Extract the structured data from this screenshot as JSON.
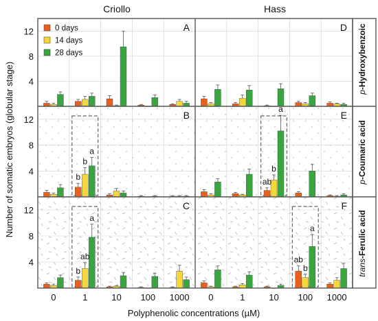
{
  "colors": {
    "day0": "#e8601c",
    "day14": "#f5d63b",
    "day28": "#3aa540",
    "frame": "#555555",
    "grid": "#d0d0d0"
  },
  "chart_data": [
    {
      "type": "bar",
      "panel": "A",
      "cultivar": "Criollo",
      "compound_pre": "p",
      "compound_main": "-Hydroxybenzoic",
      "categories": [
        "0",
        "1",
        "10",
        "100",
        "1000"
      ],
      "ylim": [
        0,
        14
      ],
      "yticks": [
        4,
        8,
        12
      ],
      "series": [
        {
          "name": "0 days",
          "values": [
            0.5,
            0.8,
            1.2,
            0.2,
            0.3
          ],
          "errors": [
            0.3,
            0.3,
            0.5,
            0.1,
            0.1
          ]
        },
        {
          "name": "14 days",
          "values": [
            0.3,
            1.1,
            0.1,
            0.0,
            0.8
          ],
          "errors": [
            0.2,
            0.5,
            0.1,
            0.0,
            0.3
          ]
        },
        {
          "name": "28 days",
          "values": [
            1.9,
            1.6,
            9.5,
            1.4,
            0.5
          ],
          "errors": [
            0.4,
            0.5,
            2.5,
            0.4,
            0.3
          ]
        }
      ],
      "letters": [],
      "box": null
    },
    {
      "type": "bar",
      "panel": "B",
      "cultivar": "",
      "compound_pre": "p",
      "compound_main": "-Coumaric acid",
      "categories": [
        "0",
        "1",
        "10",
        "100",
        "1000"
      ],
      "ylim": [
        0,
        14
      ],
      "yticks": [
        4,
        8,
        12
      ],
      "series": [
        {
          "name": "0 days",
          "values": [
            0.7,
            1.5,
            0.3,
            0.1,
            0.1
          ],
          "errors": [
            0.3,
            0.6,
            0.2,
            0.1,
            0.1
          ]
        },
        {
          "name": "14 days",
          "values": [
            0.4,
            3.5,
            0.9,
            0.0,
            0.1
          ],
          "errors": [
            0.2,
            1.0,
            0.4,
            0.0,
            0.1
          ]
        },
        {
          "name": "28 days",
          "values": [
            1.4,
            4.8,
            0.6,
            0.1,
            0.1
          ],
          "errors": [
            0.5,
            1.3,
            0.3,
            0.1,
            0.1
          ]
        }
      ],
      "letters": [
        {
          "cat": 1,
          "s": 0,
          "text": "b"
        },
        {
          "cat": 1,
          "s": 1,
          "text": "b"
        },
        {
          "cat": 1,
          "s": 2,
          "text": "a"
        }
      ],
      "box": [
        1
      ]
    },
    {
      "type": "bar",
      "panel": "C",
      "cultivar": "",
      "compound_pre": "trans",
      "compound_main": "-Ferulic acid",
      "categories": [
        "0",
        "1",
        "10",
        "100",
        "1000"
      ],
      "ylim": [
        0,
        14
      ],
      "yticks": [
        4,
        8,
        12
      ],
      "series": [
        {
          "name": "0 days",
          "values": [
            0.6,
            1.2,
            0.2,
            0.1,
            0.1
          ],
          "errors": [
            0.2,
            0.5,
            0.1,
            0.1,
            0.1
          ]
        },
        {
          "name": "14 days",
          "values": [
            0.4,
            3.0,
            0.3,
            0.0,
            2.6
          ],
          "errors": [
            0.2,
            0.9,
            0.1,
            0.0,
            0.9
          ]
        },
        {
          "name": "28 days",
          "values": [
            1.6,
            7.8,
            1.9,
            1.8,
            1.3
          ],
          "errors": [
            0.4,
            2.0,
            0.5,
            0.5,
            0.4
          ]
        }
      ],
      "letters": [
        {
          "cat": 1,
          "s": 0,
          "text": "b"
        },
        {
          "cat": 1,
          "s": 1,
          "text": "ab"
        },
        {
          "cat": 1,
          "s": 2,
          "text": "a"
        }
      ],
      "box": [
        1
      ]
    },
    {
      "type": "bar",
      "panel": "D",
      "cultivar": "Hass",
      "compound_pre": "",
      "compound_main": "",
      "categories": [
        "0",
        "1",
        "10",
        "100",
        "1000"
      ],
      "ylim": [
        0,
        14
      ],
      "yticks": [
        4,
        8,
        12
      ],
      "series": [
        {
          "name": "0 days",
          "values": [
            1.2,
            0.4,
            0.1,
            0.6,
            0.5
          ],
          "errors": [
            0.4,
            0.2,
            0.1,
            0.2,
            0.2
          ]
        },
        {
          "name": "14 days",
          "values": [
            0.4,
            1.3,
            0.0,
            0.4,
            0.4
          ],
          "errors": [
            0.2,
            0.5,
            0.0,
            0.2,
            0.1
          ]
        },
        {
          "name": "28 days",
          "values": [
            2.7,
            2.6,
            2.8,
            1.7,
            0.3
          ],
          "errors": [
            0.7,
            0.7,
            0.8,
            0.4,
            0.2
          ]
        }
      ],
      "letters": [],
      "box": null
    },
    {
      "type": "bar",
      "panel": "E",
      "cultivar": "",
      "compound_pre": "",
      "compound_main": "",
      "categories": [
        "0",
        "1",
        "10",
        "100",
        "1000"
      ],
      "ylim": [
        0,
        14
      ],
      "yticks": [
        4,
        8,
        12
      ],
      "series": [
        {
          "name": "0 days",
          "values": [
            0.8,
            0.5,
            1.0,
            0.6,
            0.2
          ],
          "errors": [
            0.3,
            0.2,
            0.4,
            0.2,
            0.1
          ]
        },
        {
          "name": "14 days",
          "values": [
            0.3,
            0.3,
            2.6,
            0.0,
            0.1
          ],
          "errors": [
            0.2,
            0.1,
            0.8,
            0.0,
            0.1
          ]
        },
        {
          "name": "28 days",
          "values": [
            2.3,
            3.5,
            10.2,
            4.0,
            0.3
          ],
          "errors": [
            0.5,
            0.8,
            2.4,
            1.0,
            0.2
          ]
        }
      ],
      "letters": [
        {
          "cat": 2,
          "s": 0,
          "text": "ab"
        },
        {
          "cat": 2,
          "s": 1,
          "text": "b"
        },
        {
          "cat": 2,
          "s": 2,
          "text": "a"
        }
      ],
      "box": [
        2
      ]
    },
    {
      "type": "bar",
      "panel": "F",
      "cultivar": "",
      "compound_pre": "",
      "compound_main": "",
      "categories": [
        "0",
        "1",
        "10",
        "100",
        "1000"
      ],
      "ylim": [
        0,
        14
      ],
      "yticks": [
        4,
        8,
        12
      ],
      "series": [
        {
          "name": "0 days",
          "values": [
            0.8,
            0.2,
            0.2,
            2.6,
            0.6
          ],
          "errors": [
            0.3,
            0.1,
            0.1,
            0.8,
            0.2
          ]
        },
        {
          "name": "14 days",
          "values": [
            0.2,
            0.5,
            0.0,
            1.6,
            1.2
          ],
          "errors": [
            0.1,
            0.2,
            0.0,
            0.5,
            0.4
          ]
        },
        {
          "name": "28 days",
          "values": [
            2.8,
            2.0,
            0.4,
            6.4,
            3.0
          ],
          "errors": [
            0.6,
            0.5,
            0.2,
            1.8,
            0.8
          ]
        }
      ],
      "letters": [
        {
          "cat": 3,
          "s": 0,
          "text": "ab"
        },
        {
          "cat": 3,
          "s": 1,
          "text": "b"
        },
        {
          "cat": 3,
          "s": 2,
          "text": "a"
        }
      ],
      "box": [
        3
      ]
    }
  ],
  "axes": {
    "ylabel": "Number of somatic embryos (globular stage)",
    "xlabel": "Polyphenolic concentrations (µM)"
  }
}
